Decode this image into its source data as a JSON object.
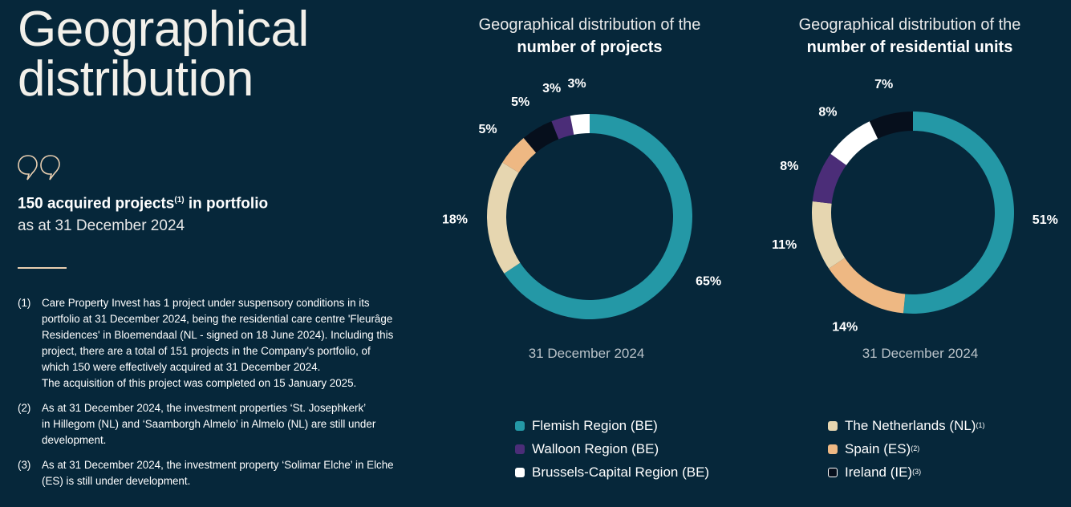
{
  "page": {
    "title_line1": "Geographical",
    "title_line2": "distribution",
    "summary_bold": "150 acquired projects",
    "summary_sup": "(1)",
    "summary_bold_tail": " in portfolio",
    "summary_sub": "as at 31 December 2024"
  },
  "footnotes": [
    {
      "num": "(1)",
      "lines": [
        "Care Property Invest has 1 project under suspensory conditions in its",
        "portfolio at 31 December 2024, being the residential care centre 'Fleurâge",
        "Residences' in Bloemendaal (NL - signed on 18 June 2024). Including this",
        "project, there are a total of 151 projects in the Company's portfolio, of",
        "which 150 were effectively acquired at 31 December 2024.",
        "The acquisition of this project was completed on 15 January 2025."
      ]
    },
    {
      "num": "(2)",
      "lines": [
        "As at 31 December 2024, the investment properties ‘St. Josephkerk’",
        "in Hillegom (NL) and ‘Saamborgh Almelo’ in Almelo (NL) are still under",
        "development."
      ]
    },
    {
      "num": "(3)",
      "lines": [
        "As at 31 December 2024, the investment property  ‘Solimar Elche’ in Elche",
        "(ES) is still under development."
      ]
    }
  ],
  "colors": {
    "flemish": "#2498a6",
    "walloon": "#4b2d78",
    "brussels": "#ffffff",
    "netherlands": "#e6d6b0",
    "spain": "#eeb883",
    "ireland": "#060f1c"
  },
  "chart_data": [
    {
      "type": "pie",
      "title_line1": "Geographical distribution of the",
      "title_line2": "number of projects",
      "caption": "31 December 2024",
      "slices": [
        {
          "key": "flemish",
          "label": "65%",
          "value": 65
        },
        {
          "key": "netherlands",
          "label": "18%",
          "value": 18
        },
        {
          "key": "spain",
          "label": "5%",
          "value": 5
        },
        {
          "key": "ireland",
          "label": "5%",
          "value": 5
        },
        {
          "key": "walloon",
          "label": "3%",
          "value": 3
        },
        {
          "key": "brussels",
          "label": "3%",
          "value": 3
        }
      ]
    },
    {
      "type": "pie",
      "title_line1": "Geographical distribution of the",
      "title_line2": "number of residential units",
      "caption": "31 December 2024",
      "slices": [
        {
          "key": "flemish",
          "label": "51%",
          "value": 51
        },
        {
          "key": "spain",
          "label": "14%",
          "value": 14
        },
        {
          "key": "netherlands",
          "label": "11%",
          "value": 11
        },
        {
          "key": "walloon",
          "label": "8%",
          "value": 8
        },
        {
          "key": "brussels",
          "label": "8%",
          "value": 8
        },
        {
          "key": "ireland",
          "label": "7%",
          "value": 7
        }
      ]
    }
  ],
  "legend": [
    {
      "key": "flemish",
      "label": "Flemish Region (BE)",
      "sup": ""
    },
    {
      "key": "walloon",
      "label": "Walloon Region (BE)",
      "sup": ""
    },
    {
      "key": "brussels",
      "label": "Brussels-Capital Region (BE)",
      "sup": ""
    },
    {
      "key": "netherlands",
      "label": "The Netherlands (NL)",
      "sup": "(1)"
    },
    {
      "key": "spain",
      "label": "Spain (ES)",
      "sup": "(2)"
    },
    {
      "key": "ireland",
      "label": "Ireland (IE)",
      "sup": "(3)"
    }
  ]
}
